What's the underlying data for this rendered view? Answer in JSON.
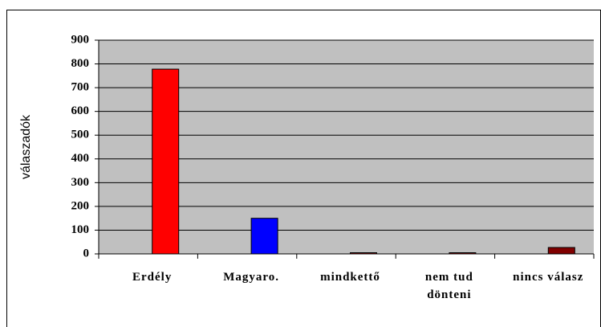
{
  "chart_data": {
    "type": "bar",
    "y_label": "válaszadók",
    "categories": [
      "Erdély",
      "Magyaro.",
      "mindkettő",
      "nem tud dönteni",
      "nincs válasz"
    ],
    "values": [
      778,
      150,
      5,
      5,
      27
    ],
    "colors": [
      "#ff0000",
      "#0000ff",
      "#800000",
      "#800000",
      "#800000"
    ],
    "ylim": [
      0,
      900
    ],
    "yticks": [
      0,
      100,
      200,
      300,
      400,
      500,
      600,
      700,
      800,
      900
    ],
    "grid": true
  }
}
